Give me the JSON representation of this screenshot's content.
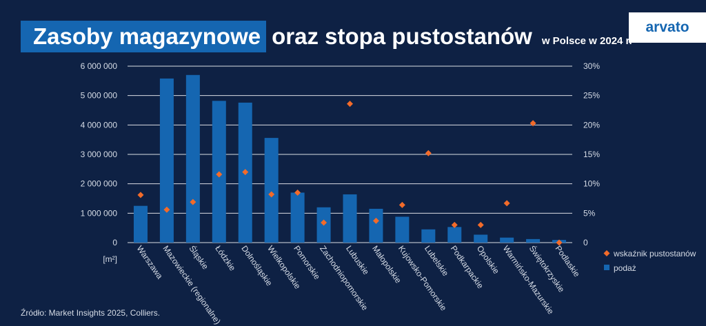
{
  "header": {
    "title_highlight": "Zasoby magazynowe",
    "title_rest": "oraz stopa pustostanów",
    "title_suffix": "w Polsce w 2024 r.",
    "logo": "arvato"
  },
  "source": "Źródło: Market Insights 2025, Colliers.",
  "colors": {
    "background": "#0e2144",
    "bar": "#1566b1",
    "marker": "#f26b2a",
    "grid": "#ffffff"
  },
  "chart_data": {
    "type": "bar",
    "categories": [
      "Warszawa",
      "Mazowieckie (regionalne)",
      "Śląskie",
      "Łódzkie",
      "Dolnośląskie",
      "Wielkopolskie",
      "Pomorskie",
      "Zachodniopomorskie",
      "Lubuskie",
      "Małopolskie",
      "Kujowsko-Pomorskie",
      "Lubelskie",
      "Podkarpackie",
      "Opolskie",
      "Warmińsko-Mazurskie",
      "Świętokrzyskie",
      "Podlaskie"
    ],
    "series": [
      {
        "name": "podaż",
        "kind": "bar",
        "axis": "left",
        "values": [
          1250000,
          5580000,
          5700000,
          4820000,
          4760000,
          3560000,
          1700000,
          1200000,
          1640000,
          1150000,
          880000,
          450000,
          530000,
          270000,
          170000,
          120000,
          90000
        ]
      },
      {
        "name": "wskaźnik pustostanów",
        "kind": "marker",
        "axis": "right",
        "values": [
          8.1,
          5.6,
          6.9,
          11.6,
          12.0,
          8.2,
          8.5,
          3.4,
          23.6,
          3.7,
          6.4,
          15.2,
          3.0,
          3.0,
          6.7,
          20.3,
          0.0
        ]
      }
    ],
    "y_left": {
      "unit": "[m²]",
      "ylim": [
        0,
        6000000
      ],
      "ticks": [
        "0",
        "1 000 000",
        "2 000 000",
        "3 000 000",
        "4 000 000",
        "5 000 000",
        "6 000 000"
      ]
    },
    "y_right": {
      "ylim": [
        0,
        30
      ],
      "ticks": [
        "0",
        "5%",
        "10%",
        "15%",
        "20%",
        "25%",
        "30%"
      ]
    },
    "grid": true,
    "legend": {
      "placement": "right",
      "entries": [
        "wskaźnik pustostanów",
        "podaż"
      ]
    }
  }
}
